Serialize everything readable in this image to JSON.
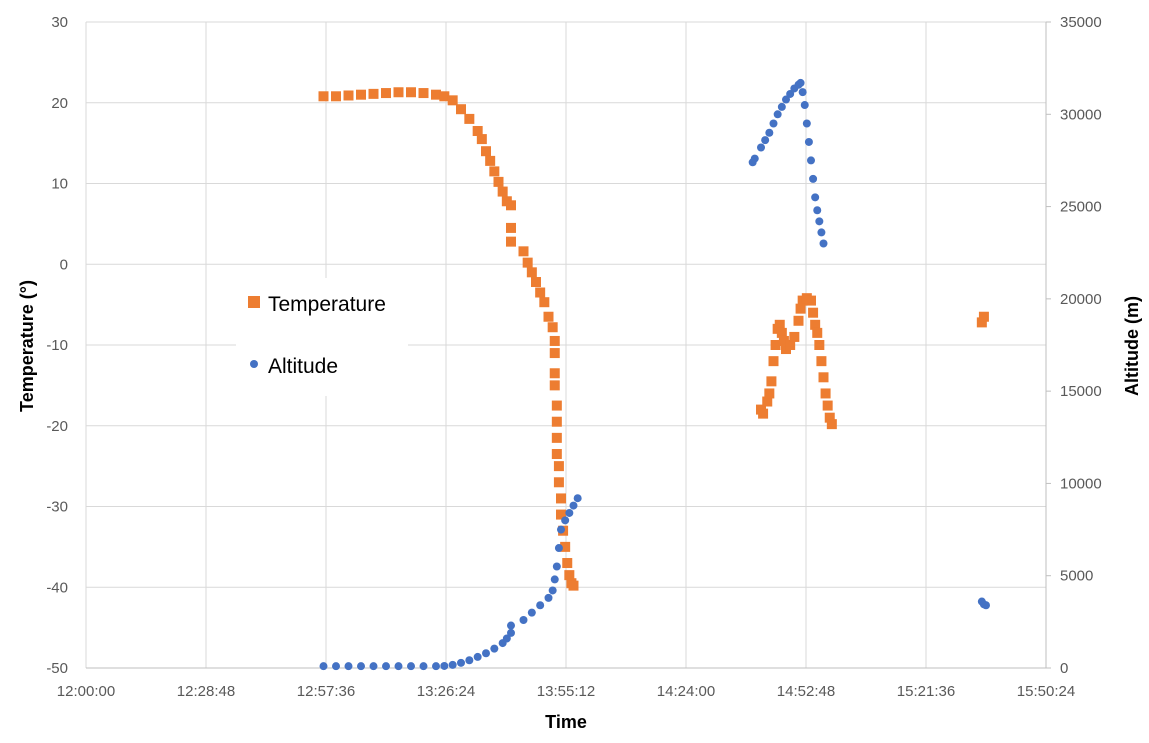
{
  "chart_data": {
    "type": "scatter",
    "xlabel": "Time",
    "ylabel": "Temperature (°)",
    "y2label": "Altitude (m)",
    "x_ticks": [
      "12:00:00",
      "12:28:48",
      "12:57:36",
      "13:26:24",
      "13:55:12",
      "14:24:00",
      "14:52:48",
      "15:21:36",
      "15:50:24"
    ],
    "xlim": [
      "12:00:00",
      "15:50:24"
    ],
    "ylim": [
      -50,
      30
    ],
    "y_ticks": [
      -50,
      -40,
      -30,
      -20,
      -10,
      0,
      10,
      20,
      30
    ],
    "y2lim": [
      0,
      35000
    ],
    "y2_ticks": [
      0,
      5000,
      10000,
      15000,
      20000,
      25000,
      30000,
      35000
    ],
    "grid": true,
    "legend_position": "left-middle",
    "series": [
      {
        "name": "Temperature",
        "axis": "left",
        "marker": "square",
        "color": "#ED7D31",
        "points": [
          [
            "12:57:00",
            20.8
          ],
          [
            "13:00:00",
            20.8
          ],
          [
            "13:03:00",
            20.9
          ],
          [
            "13:06:00",
            21.0
          ],
          [
            "13:09:00",
            21.1
          ],
          [
            "13:12:00",
            21.2
          ],
          [
            "13:15:00",
            21.3
          ],
          [
            "13:18:00",
            21.3
          ],
          [
            "13:21:00",
            21.2
          ],
          [
            "13:24:00",
            21.0
          ],
          [
            "13:26:00",
            20.8
          ],
          [
            "13:28:00",
            20.3
          ],
          [
            "13:30:00",
            19.2
          ],
          [
            "13:32:00",
            18.0
          ],
          [
            "13:34:00",
            16.5
          ],
          [
            "13:35:00",
            15.5
          ],
          [
            "13:36:00",
            14.0
          ],
          [
            "13:37:00",
            12.8
          ],
          [
            "13:38:00",
            11.5
          ],
          [
            "13:39:00",
            10.2
          ],
          [
            "13:40:00",
            9.0
          ],
          [
            "13:41:00",
            7.8
          ],
          [
            "13:42:00",
            7.3
          ],
          [
            "13:42:00",
            4.5
          ],
          [
            "13:42:00",
            2.8
          ],
          [
            "13:45:00",
            1.6
          ],
          [
            "13:46:00",
            0.2
          ],
          [
            "13:47:00",
            -1.0
          ],
          [
            "13:48:00",
            -2.2
          ],
          [
            "13:49:00",
            -3.5
          ],
          [
            "13:50:00",
            -4.7
          ],
          [
            "13:51:00",
            -6.5
          ],
          [
            "13:52:00",
            -7.8
          ],
          [
            "13:52:30",
            -9.5
          ],
          [
            "13:52:30",
            -11.0
          ],
          [
            "13:52:30",
            -13.5
          ],
          [
            "13:52:30",
            -15.0
          ],
          [
            "13:53:00",
            -17.5
          ],
          [
            "13:53:00",
            -19.5
          ],
          [
            "13:53:00",
            -21.5
          ],
          [
            "13:53:00",
            -23.5
          ],
          [
            "13:53:30",
            -25.0
          ],
          [
            "13:53:30",
            -27.0
          ],
          [
            "13:54:00",
            -29.0
          ],
          [
            "13:54:00",
            -31.0
          ],
          [
            "13:54:30",
            -33.0
          ],
          [
            "13:55:00",
            -35.0
          ],
          [
            "13:55:30",
            -37.0
          ],
          [
            "13:56:00",
            -38.5
          ],
          [
            "13:56:30",
            -39.5
          ],
          [
            "13:57:00",
            -39.8
          ],
          [
            "14:42:00",
            -18.0
          ],
          [
            "14:42:30",
            -18.5
          ],
          [
            "14:43:30",
            -17.0
          ],
          [
            "14:44:00",
            -16.0
          ],
          [
            "14:44:30",
            -14.5
          ],
          [
            "14:45:00",
            -12.0
          ],
          [
            "14:45:30",
            -10.0
          ],
          [
            "14:46:00",
            -8.0
          ],
          [
            "14:46:30",
            -7.5
          ],
          [
            "14:47:00",
            -8.5
          ],
          [
            "14:47:30",
            -9.5
          ],
          [
            "14:48:00",
            -10.5
          ],
          [
            "14:49:00",
            -10.0
          ],
          [
            "14:50:00",
            -9.0
          ],
          [
            "14:51:00",
            -7.0
          ],
          [
            "14:51:30",
            -5.5
          ],
          [
            "14:52:00",
            -4.5
          ],
          [
            "14:53:00",
            -4.2
          ],
          [
            "14:54:00",
            -4.5
          ],
          [
            "14:54:30",
            -6.0
          ],
          [
            "14:55:00",
            -7.5
          ],
          [
            "14:55:30",
            -8.5
          ],
          [
            "14:56:00",
            -10.0
          ],
          [
            "14:56:30",
            -12.0
          ],
          [
            "14:57:00",
            -14.0
          ],
          [
            "14:57:30",
            -16.0
          ],
          [
            "14:58:00",
            -17.5
          ],
          [
            "14:58:30",
            -19.0
          ],
          [
            "14:59:00",
            -19.8
          ],
          [
            "15:35:00",
            -7.2
          ],
          [
            "15:35:30",
            -6.5
          ]
        ]
      },
      {
        "name": "Altitude",
        "axis": "right",
        "marker": "circle",
        "color": "#4472C4",
        "points": [
          [
            "12:57:00",
            100
          ],
          [
            "13:00:00",
            100
          ],
          [
            "13:03:00",
            100
          ],
          [
            "13:06:00",
            100
          ],
          [
            "13:09:00",
            100
          ],
          [
            "13:12:00",
            100
          ],
          [
            "13:15:00",
            100
          ],
          [
            "13:18:00",
            100
          ],
          [
            "13:21:00",
            100
          ],
          [
            "13:24:00",
            100
          ],
          [
            "13:26:00",
            110
          ],
          [
            "13:28:00",
            170
          ],
          [
            "13:30:00",
            280
          ],
          [
            "13:32:00",
            420
          ],
          [
            "13:34:00",
            600
          ],
          [
            "13:36:00",
            800
          ],
          [
            "13:38:00",
            1050
          ],
          [
            "13:40:00",
            1350
          ],
          [
            "13:41:00",
            1600
          ],
          [
            "13:42:00",
            1900
          ],
          [
            "13:42:00",
            2300
          ],
          [
            "13:45:00",
            2600
          ],
          [
            "13:47:00",
            3000
          ],
          [
            "13:49:00",
            3400
          ],
          [
            "13:51:00",
            3800
          ],
          [
            "13:52:00",
            4200
          ],
          [
            "13:52:30",
            4800
          ],
          [
            "13:53:00",
            5500
          ],
          [
            "13:53:30",
            6500
          ],
          [
            "13:54:00",
            7500
          ],
          [
            "13:55:00",
            8000
          ],
          [
            "13:56:00",
            8400
          ],
          [
            "13:57:00",
            8800
          ],
          [
            "13:58:00",
            9200
          ],
          [
            "14:40:00",
            27400
          ],
          [
            "14:40:30",
            27600
          ],
          [
            "14:42:00",
            28200
          ],
          [
            "14:43:00",
            28600
          ],
          [
            "14:44:00",
            29000
          ],
          [
            "14:45:00",
            29500
          ],
          [
            "14:46:00",
            30000
          ],
          [
            "14:47:00",
            30400
          ],
          [
            "14:48:00",
            30800
          ],
          [
            "14:49:00",
            31100
          ],
          [
            "14:50:00",
            31400
          ],
          [
            "14:51:00",
            31600
          ],
          [
            "14:51:30",
            31700
          ],
          [
            "14:52:00",
            31200
          ],
          [
            "14:52:30",
            30500
          ],
          [
            "14:53:00",
            29500
          ],
          [
            "14:53:30",
            28500
          ],
          [
            "14:54:00",
            27500
          ],
          [
            "14:54:30",
            26500
          ],
          [
            "14:55:00",
            25500
          ],
          [
            "14:55:30",
            24800
          ],
          [
            "14:56:00",
            24200
          ],
          [
            "14:56:30",
            23600
          ],
          [
            "14:57:00",
            23000
          ],
          [
            "15:35:00",
            3600
          ],
          [
            "15:35:30",
            3450
          ],
          [
            "15:36:00",
            3400
          ]
        ]
      }
    ]
  }
}
